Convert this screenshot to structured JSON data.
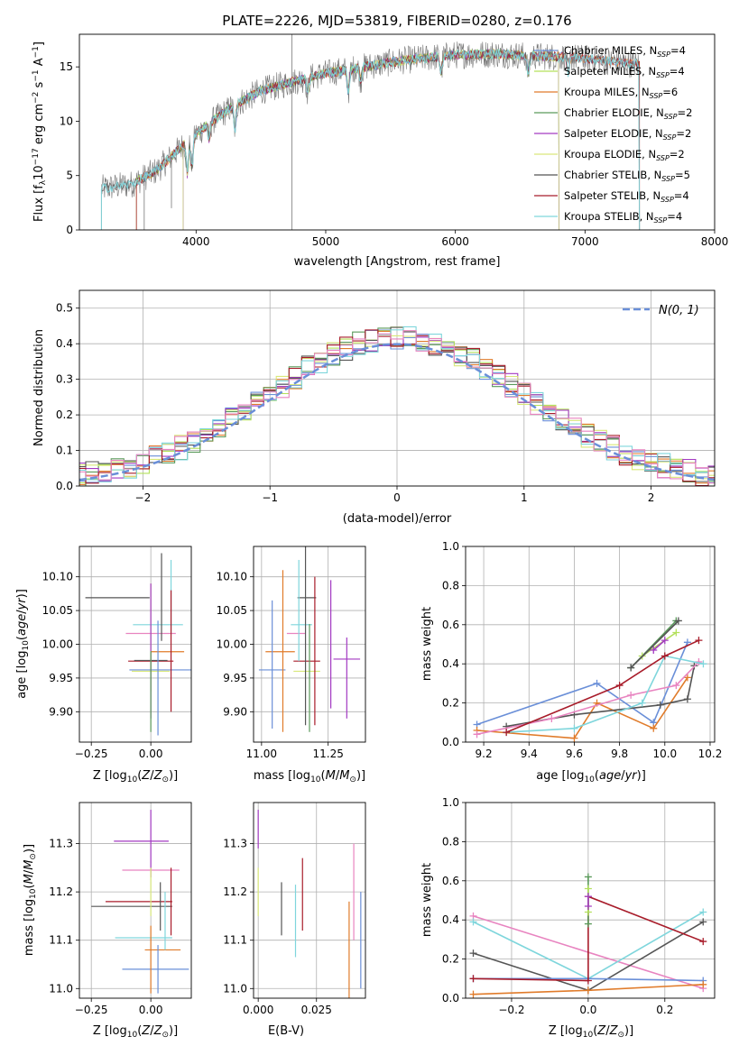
{
  "colors": {
    "chabrier_miles": "#6a8fd8",
    "salpeter_miles": "#b3e05a",
    "kroupa_miles": "#e07b2a",
    "chabrier_elodie": "#5a9a5a",
    "salpeter_elodie": "#a33ac2",
    "kroupa_elodie": "#d9e87a",
    "chabrier_stelib": "#555555",
    "salpeter_stelib": "#a81c2a",
    "kroupa_stelib": "#7fd6dc",
    "pink": "#e884c0"
  },
  "chart_data": [
    {
      "id": "spectrum",
      "type": "line",
      "title": "PLATE=2226, MJD=53819, FIBERID=0280, z=0.176",
      "xlabel": "wavelength [Angstrom, rest frame]",
      "ylabel": "Flux [fλ10⁻¹⁷ erg cm⁻² s⁻¹ A⁻¹]",
      "xlim": [
        3100,
        8000
      ],
      "ylim": [
        0,
        18
      ],
      "xticks": [
        4000,
        5000,
        6000,
        7000,
        8000
      ],
      "yticks": [
        0,
        5,
        10,
        15
      ],
      "legend_position": "top-right",
      "legend": [
        "Chabrier MILES, N_SSP=4",
        "Salpeter MILES, N_SSP=4",
        "Kroupa MILES, N_SSP=6",
        "Chabrier ELODIE, N_SSP=2",
        "Salpeter ELODIE, N_SSP=2",
        "Kroupa ELODIE, N_SSP=2",
        "Chabrier STELIB, N_SSP=5",
        "Salpeter STELIB, N_SSP=4",
        "Kroupa STELIB, N_SSP=4"
      ],
      "data_wavelength_range": [
        3270,
        7420
      ],
      "continuum": {
        "x": [
          3270,
          3500,
          3700,
          3900,
          4100,
          4300,
          4500,
          4800,
          5000,
          5300,
          5600,
          6000,
          6300,
          6600,
          6900,
          7200,
          7420
        ],
        "y": [
          3.8,
          4.2,
          5.5,
          7.8,
          9.8,
          11.5,
          12.8,
          13.8,
          14.4,
          15.0,
          15.6,
          16.1,
          16.2,
          16.0,
          15.9,
          15.5,
          15.2
        ]
      }
    },
    {
      "id": "residuals",
      "type": "histogram",
      "xlabel": "(data-model)/error",
      "ylabel": "Normed distribution",
      "xlim": [
        -2.5,
        2.5
      ],
      "ylim": [
        0,
        0.55
      ],
      "xticks": [
        -2,
        -1,
        0,
        1,
        2
      ],
      "yticks": [
        0.0,
        0.1,
        0.2,
        0.3,
        0.4,
        0.5
      ],
      "grid": true,
      "legend": [
        "𝒩(0, 1)"
      ],
      "legend_position": "top-right",
      "bin_width": 0.1
    },
    {
      "id": "age_vs_Z",
      "type": "errorbar",
      "xlabel": "Z [log₁₀(Z/Z⊙)]",
      "ylabel": "age  [log₁₀(age/yr)]",
      "xlim": [
        -0.3,
        0.17
      ],
      "ylim": [
        9.855,
        10.145
      ],
      "xticks": [
        -0.25,
        0.0,
        0.25
      ],
      "yticks": [
        9.9,
        9.95,
        10.0,
        10.05,
        10.1
      ],
      "points": [
        {
          "color": "chabrier_stelib",
          "x": -0.14,
          "y": 10.069,
          "xerr": 0.135,
          "yerr": 0.0
        },
        {
          "color": "kroupa_stelib",
          "x": 0.03,
          "y": 10.029,
          "xerr": 0.105,
          "yerr": 0.0
        },
        {
          "color": "pink",
          "x": 0.0,
          "y": 10.016,
          "xerr": 0.105,
          "yerr": 0.0
        },
        {
          "color": "kroupa_miles",
          "x": 0.07,
          "y": 9.989,
          "xerr": 0.07,
          "yerr": 0.0
        },
        {
          "color": "salpeter_stelib",
          "x": 0.0,
          "y": 9.975,
          "xerr": 0.095,
          "yerr": 0.0
        },
        {
          "color": "chabrier_miles",
          "x": 0.04,
          "y": 9.962,
          "xerr": 0.13,
          "yerr": 0.0
        },
        {
          "color": "kroupa_elodie",
          "x": 0.0,
          "y": 9.96,
          "xerr": 0.08,
          "yerr": 0.0
        },
        {
          "color": "chabrier_stelib",
          "x": 0.0,
          "y": 9.976,
          "xerr": 0.07,
          "yerr": 0.0
        },
        {
          "color": "kroupa_elodie",
          "x": 0.0,
          "y": 10.01,
          "xerr": 0.0,
          "yerr": 0.08
        },
        {
          "color": "salpeter_elodie",
          "x": 0.0,
          "y": 9.99,
          "xerr": 0.0,
          "yerr": 0.1
        },
        {
          "color": "chabrier_elodie",
          "x": 0.0,
          "y": 9.93,
          "xerr": 0.0,
          "yerr": 0.06
        },
        {
          "color": "chabrier_miles",
          "x": 0.03,
          "y": 9.95,
          "xerr": 0.0,
          "yerr": 0.085
        },
        {
          "color": "chabrier_stelib",
          "x": 0.045,
          "y": 10.07,
          "xerr": 0.0,
          "yerr": 0.065
        },
        {
          "color": "kroupa_stelib",
          "x": 0.085,
          "y": 10.07,
          "xerr": 0.0,
          "yerr": 0.055
        },
        {
          "color": "salpeter_stelib",
          "x": 0.085,
          "y": 9.99,
          "xerr": 0.0,
          "yerr": 0.09
        }
      ]
    },
    {
      "id": "age_vs_mass",
      "type": "errorbar",
      "xlabel": "mass [log₁₀(M/M⊙)]",
      "ylabel": "",
      "xlim": [
        10.97,
        11.39
      ],
      "ylim": [
        9.855,
        10.145
      ],
      "xticks": [
        11.0,
        11.25
      ],
      "xticklabels": [
        "11.00",
        "11.25"
      ],
      "yticks": [
        9.9,
        9.95,
        10.0,
        10.05,
        10.1
      ],
      "points": [
        {
          "color": "chabrier_stelib",
          "x": 11.17,
          "y": 10.069,
          "xerr": 0.035,
          "yerr": 0.0
        },
        {
          "color": "kroupa_stelib",
          "x": 11.15,
          "y": 10.029,
          "xerr": 0.04,
          "yerr": 0.0
        },
        {
          "color": "pink",
          "x": 11.13,
          "y": 10.016,
          "xerr": 0.035,
          "yerr": 0.0
        },
        {
          "color": "kroupa_miles",
          "x": 11.07,
          "y": 9.989,
          "xerr": 0.055,
          "yerr": 0.0
        },
        {
          "color": "salpeter_stelib",
          "x": 11.17,
          "y": 9.975,
          "xerr": 0.05,
          "yerr": 0.0
        },
        {
          "color": "salpeter_elodie",
          "x": 11.32,
          "y": 9.978,
          "xerr": 0.05,
          "yerr": 0.0
        },
        {
          "color": "chabrier_miles",
          "x": 11.04,
          "y": 9.962,
          "xerr": 0.05,
          "yerr": 0.0
        },
        {
          "color": "kroupa_elodie",
          "x": 11.17,
          "y": 9.96,
          "xerr": 0.05,
          "yerr": 0.0
        },
        {
          "color": "chabrier_miles",
          "x": 11.04,
          "y": 9.97,
          "xerr": 0.0,
          "yerr": 0.095
        },
        {
          "color": "kroupa_miles",
          "x": 11.08,
          "y": 9.99,
          "xerr": 0.0,
          "yerr": 0.12
        },
        {
          "color": "kroupa_stelib",
          "x": 11.14,
          "y": 10.05,
          "xerr": 0.0,
          "yerr": 0.075
        },
        {
          "color": "chabrier_stelib",
          "x": 11.165,
          "y": 10.02,
          "xerr": 0.0,
          "yerr": 0.14
        },
        {
          "color": "chabrier_elodie",
          "x": 11.18,
          "y": 9.95,
          "xerr": 0.0,
          "yerr": 0.08
        },
        {
          "color": "salpeter_stelib",
          "x": 11.2,
          "y": 9.99,
          "xerr": 0.0,
          "yerr": 0.11
        },
        {
          "color": "salpeter_elodie",
          "x": 11.26,
          "y": 10.0,
          "xerr": 0.0,
          "yerr": 0.095
        },
        {
          "color": "salpeter_elodie",
          "x": 11.32,
          "y": 9.95,
          "xerr": 0.0,
          "yerr": 0.06
        }
      ]
    },
    {
      "id": "weight_vs_age",
      "type": "line",
      "xlabel": "age  [log₁₀(age/yr)]",
      "ylabel": "mass weight",
      "xlim": [
        9.12,
        10.22
      ],
      "ylim": [
        0.0,
        1.0
      ],
      "xticks": [
        9.2,
        9.4,
        9.6,
        9.8,
        10.0,
        10.2
      ],
      "yticks": [
        0.0,
        0.2,
        0.4,
        0.6,
        0.8,
        1.0
      ],
      "grid": true,
      "series": [
        {
          "color": "chabrier_miles",
          "x": [
            9.17,
            9.7,
            9.95,
            10.1
          ],
          "y": [
            0.09,
            0.3,
            0.1,
            0.51
          ]
        },
        {
          "color": "kroupa_miles",
          "x": [
            9.17,
            9.6,
            9.7,
            9.95,
            10.1
          ],
          "y": [
            0.06,
            0.02,
            0.2,
            0.07,
            0.33
          ]
        },
        {
          "color": "chabrier_stelib",
          "x": [
            9.3,
            9.6,
            9.98,
            10.1,
            10.13
          ],
          "y": [
            0.08,
            0.14,
            0.19,
            0.22,
            0.39
          ]
        },
        {
          "color": "pink",
          "x": [
            9.17,
            9.5,
            9.85,
            10.05,
            10.15
          ],
          "y": [
            0.04,
            0.12,
            0.24,
            0.29,
            0.41
          ]
        },
        {
          "color": "kroupa_stelib",
          "x": [
            9.3,
            9.6,
            9.9,
            10.0,
            10.17
          ],
          "y": [
            0.05,
            0.07,
            0.2,
            0.44,
            0.4
          ]
        },
        {
          "color": "salpeter_stelib",
          "x": [
            9.3,
            9.8,
            10.0,
            10.15
          ],
          "y": [
            0.05,
            0.29,
            0.44,
            0.52
          ]
        },
        {
          "color": "chabrier_elodie",
          "x": [
            9.85,
            10.05
          ],
          "y": [
            0.38,
            0.62
          ]
        },
        {
          "color": "salpeter_miles",
          "x": [
            9.9,
            10.05
          ],
          "y": [
            0.44,
            0.56
          ]
        },
        {
          "color": "salpeter_elodie",
          "x": [
            9.95,
            10.0
          ],
          "y": [
            0.47,
            0.52
          ]
        },
        {
          "color": "chabrier_stelib",
          "x": [
            9.85,
            10.06
          ],
          "y": [
            0.38,
            0.62
          ]
        }
      ]
    },
    {
      "id": "mass_vs_Z",
      "type": "errorbar",
      "xlabel": "Z [log₁₀(Z/Z⊙)]",
      "ylabel": "mass [log₁₀(M/M⊙)]",
      "xlim": [
        -0.3,
        0.17
      ],
      "ylim": [
        10.98,
        11.385
      ],
      "xticks": [
        -0.25,
        0.0
      ],
      "xticklabels": [
        "−0.25",
        "0.00"
      ],
      "yticks": [
        11.0,
        11.1,
        11.2,
        11.3
      ],
      "points": [
        {
          "color": "salpeter_elodie",
          "x": -0.04,
          "y": 11.305,
          "xerr": 0.115,
          "yerr": 0.0
        },
        {
          "color": "pink",
          "x": 0.0,
          "y": 11.245,
          "xerr": 0.12,
          "yerr": 0.0
        },
        {
          "color": "salpeter_stelib",
          "x": -0.05,
          "y": 11.18,
          "xerr": 0.14,
          "yerr": 0.0
        },
        {
          "color": "chabrier_stelib",
          "x": -0.08,
          "y": 11.17,
          "xerr": 0.17,
          "yerr": 0.0
        },
        {
          "color": "kroupa_stelib",
          "x": -0.03,
          "y": 11.105,
          "xerr": 0.12,
          "yerr": 0.0
        },
        {
          "color": "kroupa_miles",
          "x": 0.05,
          "y": 11.08,
          "xerr": 0.075,
          "yerr": 0.0
        },
        {
          "color": "chabrier_miles",
          "x": 0.02,
          "y": 11.04,
          "xerr": 0.14,
          "yerr": 0.0
        },
        {
          "color": "salpeter_elodie",
          "x": 0.0,
          "y": 11.3,
          "xerr": 0.0,
          "yerr": 0.07
        },
        {
          "color": "kroupa_elodie",
          "x": 0.0,
          "y": 11.2,
          "xerr": 0.0,
          "yerr": 0.05
        },
        {
          "color": "kroupa_miles",
          "x": 0.0,
          "y": 11.06,
          "xerr": 0.0,
          "yerr": 0.07
        },
        {
          "color": "chabrier_miles",
          "x": 0.03,
          "y": 11.04,
          "xerr": 0.0,
          "yerr": 0.05
        },
        {
          "color": "chabrier_stelib",
          "x": 0.04,
          "y": 11.17,
          "xerr": 0.0,
          "yerr": 0.05
        },
        {
          "color": "kroupa_stelib",
          "x": 0.06,
          "y": 11.14,
          "xerr": 0.0,
          "yerr": 0.06
        },
        {
          "color": "salpeter_stelib",
          "x": 0.085,
          "y": 11.18,
          "xerr": 0.0,
          "yerr": 0.07
        }
      ]
    },
    {
      "id": "mass_vs_ebv",
      "type": "errorbar",
      "xlabel": "E(B-V)",
      "ylabel": "",
      "xlim": [
        -0.002,
        0.046
      ],
      "ylim": [
        10.98,
        11.385
      ],
      "xticks": [
        0.0,
        0.025
      ],
      "xticklabels": [
        "0.000",
        "0.025"
      ],
      "yticks": [
        11.0,
        11.1,
        11.2,
        11.3
      ],
      "points": [
        {
          "color": "salpeter_elodie",
          "x": 0.0,
          "y": 11.33,
          "xerr": 0.0,
          "yerr": 0.04
        },
        {
          "color": "kroupa_elodie",
          "x": 0.0,
          "y": 11.2,
          "xerr": 0.0,
          "yerr": 0.05
        },
        {
          "color": "chabrier_stelib",
          "x": 0.01,
          "y": 11.165,
          "xerr": 0.0,
          "yerr": 0.055
        },
        {
          "color": "kroupa_stelib",
          "x": 0.016,
          "y": 11.14,
          "xerr": 0.0,
          "yerr": 0.075
        },
        {
          "color": "salpeter_stelib",
          "x": 0.019,
          "y": 11.195,
          "xerr": 0.0,
          "yerr": 0.075
        },
        {
          "color": "kroupa_miles",
          "x": 0.039,
          "y": 11.08,
          "xerr": 0.0,
          "yerr": 0.1
        },
        {
          "color": "pink",
          "x": 0.041,
          "y": 11.2,
          "xerr": 0.0,
          "yerr": 0.1
        },
        {
          "color": "chabrier_miles",
          "x": 0.044,
          "y": 11.1,
          "xerr": 0.0,
          "yerr": 0.1
        }
      ]
    },
    {
      "id": "weight_vs_Z",
      "type": "line",
      "xlabel": "Z [log₁₀(Z/Z⊙)]",
      "ylabel": "mass weight",
      "xlim": [
        -0.32,
        0.33
      ],
      "ylim": [
        0.0,
        1.0
      ],
      "xticks": [
        -0.2,
        0.0,
        0.2
      ],
      "xticklabels": [
        "−0.2",
        "0.0",
        "0.2"
      ],
      "yticks": [
        0.0,
        0.2,
        0.4,
        0.6,
        0.8,
        1.0
      ],
      "grid": true,
      "series": [
        {
          "color": "pink",
          "x": [
            -0.3,
            0.3
          ],
          "y": [
            0.42,
            0.05
          ]
        },
        {
          "color": "kroupa_stelib",
          "x": [
            -0.3,
            0.0,
            0.3
          ],
          "y": [
            0.39,
            0.1,
            0.44
          ]
        },
        {
          "color": "chabrier_stelib",
          "x": [
            -0.3,
            0.0,
            0.3
          ],
          "y": [
            0.23,
            0.04,
            0.39
          ]
        },
        {
          "color": "chabrier_miles",
          "x": [
            -0.3,
            0.0,
            0.3
          ],
          "y": [
            0.1,
            0.1,
            0.09
          ]
        },
        {
          "color": "salpeter_stelib",
          "x": [
            -0.3,
            0.0,
            0.0,
            0.3
          ],
          "y": [
            0.1,
            0.09,
            0.52,
            0.29
          ]
        },
        {
          "color": "kroupa_miles",
          "x": [
            -0.3,
            0.0,
            0.3
          ],
          "y": [
            0.02,
            0.04,
            0.07
          ]
        },
        {
          "color": "chabrier_elodie",
          "x": [
            0.0,
            0.0
          ],
          "y": [
            0.38,
            0.62
          ]
        },
        {
          "color": "salpeter_miles",
          "x": [
            0.0,
            0.0
          ],
          "y": [
            0.44,
            0.56
          ]
        },
        {
          "color": "salpeter_elodie",
          "x": [
            0.0,
            0.0
          ],
          "y": [
            0.47,
            0.52
          ]
        }
      ]
    }
  ]
}
